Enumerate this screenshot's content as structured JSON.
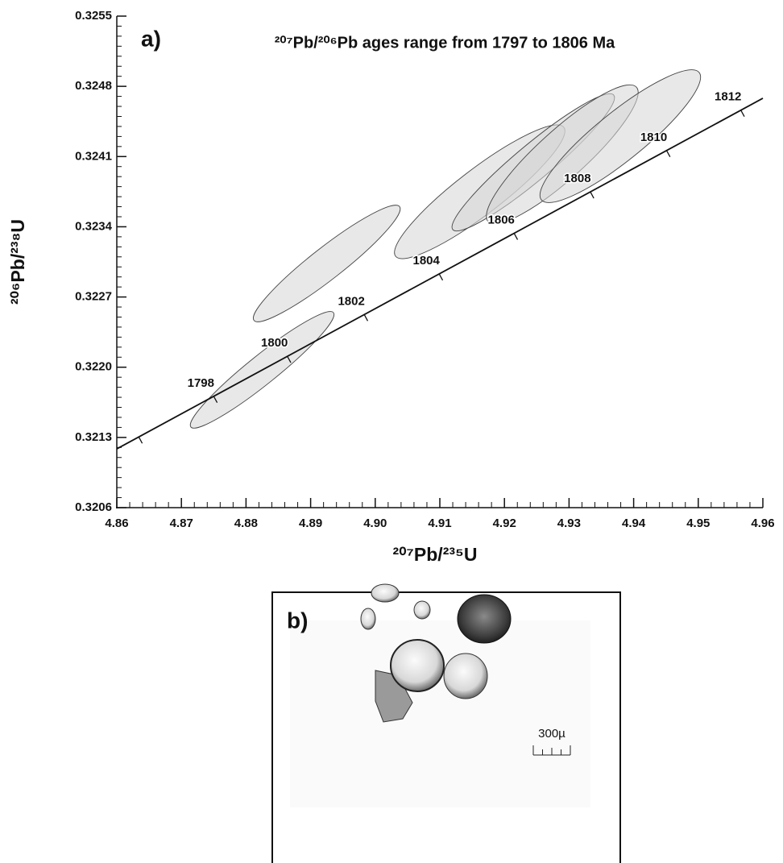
{
  "chart_data": {
    "type": "concordia",
    "panel_label": "a)",
    "title": "²⁰⁷Pb/²⁰⁶Pb ages range from 1797 to 1806 Ma",
    "x_label": "²⁰⁷Pb/²³⁵U",
    "y_label": "²⁰⁶Pb/²³⁸U",
    "xlim": [
      4.86,
      4.96
    ],
    "ylim": [
      0.3206,
      0.3255
    ],
    "xticks": [
      4.86,
      4.87,
      4.88,
      4.89,
      {
        "value": 4.9,
        "label": "4.90"
      },
      4.91,
      4.92,
      4.93,
      4.94,
      4.95,
      4.96
    ],
    "yticks": [
      0.3206,
      0.3213,
      {
        "value": 0.322,
        "label": "0.3220"
      },
      0.3227,
      0.3234,
      0.3241,
      0.3248,
      0.3255
    ],
    "minor_ticks": {
      "x": 5,
      "y": 7
    },
    "concordia": {
      "x": [
        4.86,
        4.96
      ],
      "y": [
        0.321186,
        0.324681
      ]
    },
    "age_marks": {
      "ages": [
        null,
        1798,
        1800,
        1802,
        1804,
        1806,
        1808,
        1810,
        1812
      ],
      "x": [
        4.8634,
        4.875,
        4.8864,
        4.8983,
        4.9099,
        4.9215,
        4.9333,
        4.9451,
        4.9566
      ],
      "y": [
        0.321305,
        0.32171,
        0.322109,
        0.322525,
        0.32293,
        0.323335,
        0.323748,
        0.32416,
        0.324562
      ]
    },
    "ellipses": {
      "color": "#d6d6d6",
      "x": [
        4.8825,
        4.8925,
        4.91617,
        4.92446,
        4.92895,
        4.93793
      ],
      "y": [
        0.321974,
        0.323034,
        0.323749,
        0.324042,
        0.324122,
        0.324303
      ],
      "sx": [
        0.01112,
        0.01137,
        0.01319,
        0.01258,
        0.01175,
        0.01243
      ],
      "sy": [
        0.000581,
        0.000581,
        0.000667,
        0.000684,
        0.000693,
        0.000662
      ],
      "rho": [
        0.949,
        0.939,
        0.908,
        0.943,
        0.89,
        0.889
      ]
    }
  },
  "panel_b": {
    "label": "b)",
    "scale_label": "300µ"
  }
}
